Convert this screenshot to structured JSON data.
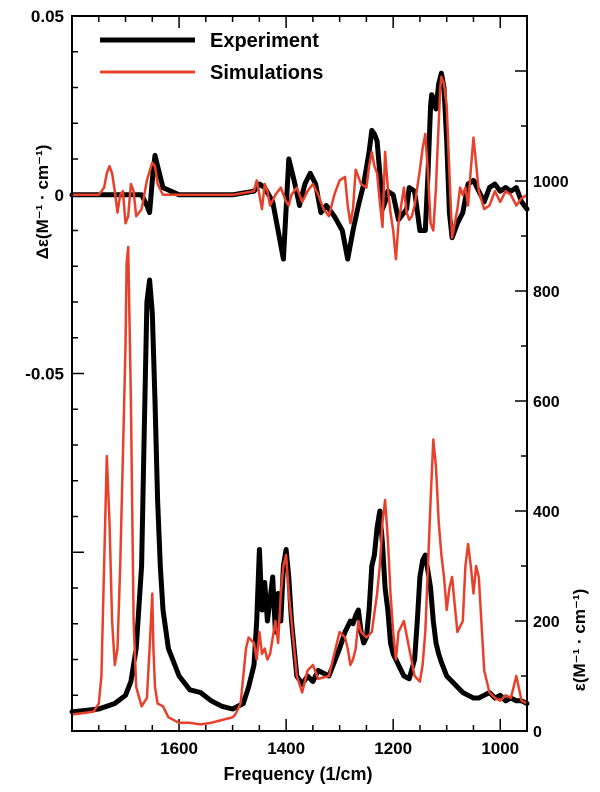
{
  "chart_data": {
    "type": "line",
    "xlabel": "Frequency (1/cm)",
    "x_reversed": true,
    "xlim": [
      1800,
      950
    ],
    "x_ticks": [
      1600,
      1400,
      1200,
      1000
    ],
    "panels": [
      {
        "name": "top",
        "ylabel_left": "Δε(M⁻¹ · cm⁻¹)",
        "ylim": [
          -0.15,
          0.05
        ],
        "y_ticks_labeled": [
          "0.05",
          "0",
          "-0.05"
        ],
        "series": [
          {
            "name": "Experiment",
            "color": "#000000",
            "x": [
              1800,
              1720,
              1670,
              1660,
              1655,
              1650,
              1645,
              1640,
              1630,
              1600,
              1500,
              1460,
              1450,
              1440,
              1425,
              1415,
              1405,
              1400,
              1395,
              1385,
              1375,
              1365,
              1355,
              1345,
              1335,
              1325,
              1310,
              1295,
              1285,
              1275,
              1265,
              1255,
              1245,
              1240,
              1235,
              1230,
              1225,
              1220,
              1215,
              1210,
              1200,
              1190,
              1185,
              1175,
              1170,
              1160,
              1150,
              1140,
              1135,
              1130,
              1128,
              1125,
              1120,
              1115,
              1110,
              1105,
              1100,
              1095,
              1090,
              1080,
              1070,
              1060,
              1050,
              1040,
              1030,
              1020,
              1010,
              1000,
              990,
              980,
              970,
              960,
              950
            ],
            "y": [
              0,
              0,
              0,
              -0.003,
              -0.005,
              0.004,
              0.011,
              0.008,
              0.002,
              0,
              0,
              0.001,
              0.003,
              0.002,
              -0.002,
              -0.01,
              -0.018,
              -0.004,
              0.01,
              0.004,
              -0.003,
              0.003,
              0.006,
              0.003,
              -0.005,
              -0.003,
              -0.006,
              -0.01,
              -0.018,
              -0.01,
              -0.003,
              0.003,
              0.012,
              0.018,
              0.017,
              0.015,
              0.006,
              -0.004,
              -0.002,
              0.001,
              0,
              -0.007,
              -0.006,
              -0.004,
              0.002,
              0.001,
              -0.01,
              -0.01,
              0.006,
              0.025,
              0.028,
              0.027,
              0.024,
              0.031,
              0.034,
              0.03,
              0.015,
              -0.005,
              -0.012,
              -0.008,
              -0.005,
              0.003,
              0.004,
              0.001,
              -0.002,
              0.002,
              0.003,
              0.001,
              0.002,
              0.001,
              0.002,
              -0.002,
              -0.004
            ]
          },
          {
            "name": "Simulations",
            "color": "#e8412b",
            "x": [
              1800,
              1750,
              1740,
              1735,
              1730,
              1725,
              1720,
              1715,
              1710,
              1705,
              1700,
              1695,
              1690,
              1685,
              1680,
              1670,
              1660,
              1650,
              1645,
              1640,
              1630,
              1600,
              1500,
              1460,
              1455,
              1450,
              1445,
              1440,
              1435,
              1430,
              1420,
              1410,
              1400,
              1395,
              1390,
              1380,
              1370,
              1360,
              1350,
              1340,
              1330,
              1320,
              1310,
              1300,
              1290,
              1285,
              1280,
              1275,
              1270,
              1265,
              1260,
              1250,
              1245,
              1240,
              1235,
              1230,
              1225,
              1220,
              1215,
              1210,
              1205,
              1200,
              1195,
              1190,
              1180,
              1175,
              1170,
              1165,
              1160,
              1150,
              1145,
              1140,
              1135,
              1130,
              1125,
              1120,
              1118,
              1115,
              1112,
              1110,
              1105,
              1100,
              1095,
              1090,
              1080,
              1075,
              1070,
              1065,
              1060,
              1055,
              1050,
              1040,
              1030,
              1020,
              1010,
              1000,
              990,
              980,
              970,
              960,
              950
            ],
            "y": [
              0,
              0,
              0.002,
              0.006,
              0.008,
              0.006,
              0.001,
              -0.005,
              0,
              0.001,
              -0.008,
              -0.006,
              0.003,
              0.001,
              -0.006,
              -0.004,
              0.004,
              0.009,
              0.008,
              0.003,
              0,
              0,
              0,
              0.001,
              0.004,
              0,
              -0.004,
              0.003,
              0.001,
              -0.003,
              0,
              0.002,
              -0.002,
              -0.003,
              0,
              0.002,
              -0.002,
              0.001,
              0.003,
              0,
              -0.004,
              -0.006,
              0,
              0.004,
              0.005,
              -0.003,
              -0.008,
              -0.004,
              0.007,
              0.005,
              0.003,
              0.002,
              0.008,
              0.012,
              0.008,
              0.006,
              -0.002,
              -0.009,
              0.012,
              0.002,
              -0.005,
              -0.01,
              -0.018,
              -0.008,
              0.002,
              -0.005,
              -0.007,
              -0.006,
              -0.003,
              0.007,
              0.013,
              0.017,
              0.006,
              -0.008,
              -0.01,
              0.002,
              0.01,
              0.02,
              0.03,
              0.033,
              0.031,
              0.025,
              0.006,
              -0.012,
              -0.004,
              0.002,
              0,
              0.002,
              -0.003,
              0.007,
              0.016,
              0.001,
              -0.004,
              -0.003,
              0.001,
              -0.002,
              0.001,
              0,
              -0.003,
              -0.001,
              0
            ]
          }
        ]
      },
      {
        "name": "bottom",
        "ylabel_right": "ε(M⁻¹ · cm⁻¹)",
        "ylim": [
          0,
          1300
        ],
        "y_ticks": [
          0,
          200,
          400,
          600,
          800,
          1000
        ],
        "series": [
          {
            "name": "Experiment",
            "color": "#000000",
            "x": [
              1800,
              1750,
              1720,
              1700,
              1690,
              1680,
              1670,
              1665,
              1660,
              1655,
              1650,
              1645,
              1640,
              1635,
              1630,
              1620,
              1600,
              1580,
              1560,
              1540,
              1520,
              1500,
              1480,
              1470,
              1460,
              1455,
              1450,
              1445,
              1440,
              1435,
              1430,
              1425,
              1420,
              1415,
              1410,
              1405,
              1400,
              1395,
              1390,
              1380,
              1370,
              1360,
              1350,
              1340,
              1320,
              1300,
              1290,
              1280,
              1275,
              1270,
              1265,
              1260,
              1255,
              1250,
              1245,
              1240,
              1235,
              1230,
              1225,
              1220,
              1215,
              1210,
              1205,
              1200,
              1195,
              1190,
              1180,
              1170,
              1160,
              1155,
              1150,
              1145,
              1140,
              1135,
              1130,
              1125,
              1120,
              1115,
              1110,
              1100,
              1090,
              1080,
              1070,
              1060,
              1050,
              1040,
              1030,
              1020,
              1010,
              1000,
              990,
              980,
              970,
              960,
              950
            ],
            "y": [
              35,
              40,
              50,
              65,
              90,
              150,
              300,
              550,
              780,
              820,
              760,
              600,
              420,
              300,
              220,
              150,
              100,
              75,
              70,
              55,
              45,
              40,
              50,
              80,
              120,
              200,
              330,
              220,
              270,
              200,
              240,
              280,
              180,
              250,
              200,
              300,
              330,
              280,
              200,
              100,
              85,
              100,
              90,
              110,
              100,
              150,
              180,
              200,
              195,
              210,
              220,
              180,
              160,
              170,
              220,
              300,
              320,
              370,
              400,
              340,
              260,
              220,
              160,
              140,
              130,
              120,
              100,
              95,
              130,
              200,
              280,
              310,
              320,
              290,
              260,
              200,
              160,
              140,
              125,
              100,
              90,
              80,
              70,
              65,
              60,
              60,
              65,
              70,
              60,
              65,
              55,
              60,
              55,
              55,
              50
            ]
          },
          {
            "name": "Simulations",
            "color": "#e8412b",
            "x": [
              1800,
              1760,
              1750,
              1745,
              1740,
              1735,
              1730,
              1725,
              1720,
              1715,
              1710,
              1705,
              1700,
              1698,
              1695,
              1690,
              1685,
              1680,
              1670,
              1660,
              1655,
              1650,
              1648,
              1645,
              1640,
              1630,
              1620,
              1600,
              1580,
              1560,
              1540,
              1520,
              1500,
              1495,
              1485,
              1480,
              1475,
              1470,
              1460,
              1455,
              1450,
              1445,
              1440,
              1435,
              1430,
              1420,
              1415,
              1410,
              1405,
              1400,
              1395,
              1390,
              1380,
              1370,
              1360,
              1350,
              1340,
              1320,
              1300,
              1290,
              1285,
              1280,
              1275,
              1270,
              1265,
              1260,
              1250,
              1240,
              1230,
              1225,
              1220,
              1215,
              1210,
              1205,
              1200,
              1195,
              1190,
              1180,
              1170,
              1160,
              1150,
              1145,
              1140,
              1135,
              1130,
              1125,
              1120,
              1115,
              1110,
              1105,
              1100,
              1095,
              1090,
              1085,
              1080,
              1070,
              1065,
              1060,
              1055,
              1050,
              1045,
              1040,
              1030,
              1020,
              1010,
              1000,
              990,
              980,
              970,
              960,
              950
            ],
            "y": [
              30,
              35,
              50,
              100,
              300,
              500,
              380,
              200,
              120,
              150,
              300,
              500,
              700,
              850,
              880,
              600,
              200,
              80,
              45,
              60,
              150,
              250,
              150,
              80,
              50,
              45,
              25,
              15,
              15,
              12,
              15,
              20,
              25,
              30,
              50,
              100,
              150,
              170,
              160,
              130,
              180,
              140,
              150,
              130,
              140,
              200,
              160,
              250,
              300,
              320,
              250,
              200,
              100,
              70,
              110,
              120,
              95,
              100,
              180,
              170,
              150,
              120,
              130,
              150,
              200,
              180,
              170,
              180,
              250,
              300,
              380,
              420,
              350,
              250,
              180,
              130,
              180,
              200,
              150,
              100,
              90,
              120,
              180,
              300,
              420,
              530,
              480,
              380,
              320,
              280,
              220,
              260,
              280,
              230,
              180,
              200,
              300,
              340,
              300,
              250,
              300,
              280,
              110,
              70,
              60,
              55,
              65,
              60,
              100,
              55,
              50
            ]
          }
        ]
      }
    ],
    "legend": {
      "position": "top-left",
      "entries": [
        "Experiment",
        "Simulations"
      ]
    }
  }
}
